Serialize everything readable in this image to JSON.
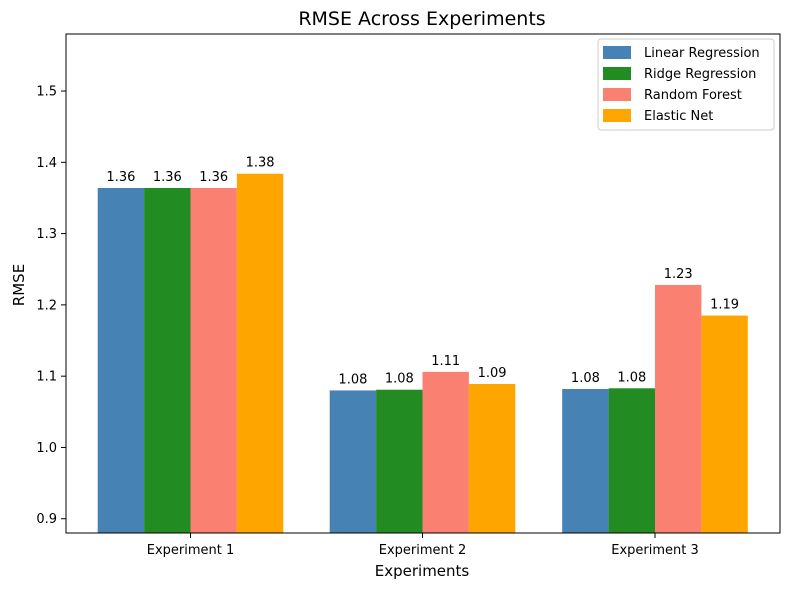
{
  "chart_data": {
    "type": "bar",
    "title": "RMSE Across Experiments",
    "xlabel": "Experiments",
    "ylabel": "RMSE",
    "categories": [
      "Experiment 1",
      "Experiment 2",
      "Experiment 3"
    ],
    "ylim": [
      0.88,
      1.58
    ],
    "yticks": [
      0.9,
      1.0,
      1.1,
      1.2,
      1.3,
      1.4,
      1.5
    ],
    "ytick_labels": [
      "0.9",
      "1.0",
      "1.1",
      "1.2",
      "1.3",
      "1.4",
      "1.5"
    ],
    "grid": false,
    "legend_position": "top-right",
    "series": [
      {
        "name": "Linear Regression",
        "color": "#4682b4",
        "values": [
          1.364,
          1.08,
          1.082
        ],
        "labels": [
          "1.36",
          "1.08",
          "1.08"
        ]
      },
      {
        "name": "Ridge Regression",
        "color": "#228b22",
        "values": [
          1.364,
          1.081,
          1.083
        ],
        "labels": [
          "1.36",
          "1.08",
          "1.08"
        ]
      },
      {
        "name": "Random Forest",
        "color": "#fa8072",
        "values": [
          1.364,
          1.106,
          1.228
        ],
        "labels": [
          "1.36",
          "1.11",
          "1.23"
        ]
      },
      {
        "name": "Elastic Net",
        "color": "#ffa500",
        "values": [
          1.384,
          1.089,
          1.185
        ],
        "labels": [
          "1.38",
          "1.09",
          "1.19"
        ]
      }
    ]
  }
}
